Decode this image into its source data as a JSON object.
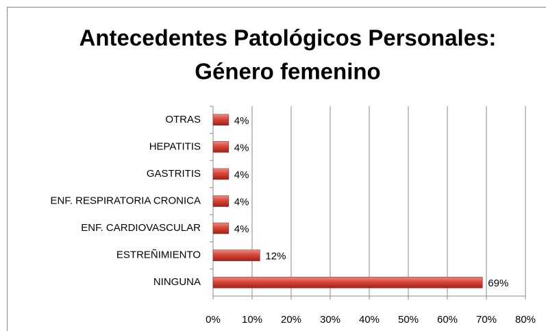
{
  "chart_data": {
    "type": "bar",
    "orientation": "horizontal",
    "title": [
      "Antecedentes Patológicos Personales:",
      "Género femenino"
    ],
    "categories": [
      "OTRAS",
      "HEPATITIS",
      "GASTRITIS",
      "ENF. RESPIRATORIA CRONICA",
      "ENF. CARDIOVASCULAR",
      "ESTREÑIMIENTO",
      "NINGUNA"
    ],
    "values": [
      4,
      4,
      4,
      4,
      4,
      12,
      69
    ],
    "value_labels": [
      "4%",
      "4%",
      "4%",
      "4%",
      "4%",
      "12%",
      "69%"
    ],
    "color": "#c0392b",
    "xlim": [
      0,
      80
    ],
    "xticks": [
      {
        "value": 0,
        "label": "0%"
      },
      {
        "value": 10,
        "label": "10%"
      },
      {
        "value": 20,
        "label": "20%"
      },
      {
        "value": 30,
        "label": "30%"
      },
      {
        "value": 40,
        "label": "40%"
      },
      {
        "value": 50,
        "label": "50%"
      },
      {
        "value": 60,
        "label": "60%"
      },
      {
        "value": 70,
        "label": "70%"
      },
      {
        "value": 80,
        "label": "80%"
      }
    ],
    "grid": true
  }
}
